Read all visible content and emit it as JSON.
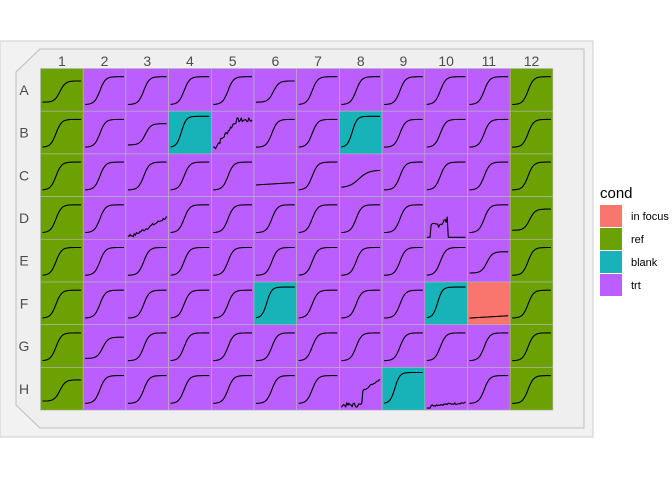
{
  "chart_data": {
    "type": "plate-map",
    "columns": [
      "1",
      "2",
      "3",
      "4",
      "5",
      "6",
      "7",
      "8",
      "9",
      "10",
      "11",
      "12"
    ],
    "rows": [
      "A",
      "B",
      "C",
      "D",
      "E",
      "F",
      "G",
      "H"
    ],
    "legend": {
      "title": "cond",
      "entries": [
        {
          "key": "in_focus",
          "label": "in focus",
          "color": "#F8766D"
        },
        {
          "key": "ref",
          "label": "ref",
          "color": "#6BA102"
        },
        {
          "key": "blank",
          "label": "blank",
          "color": "#17B3B8"
        },
        {
          "key": "trt",
          "label": "trt",
          "color": "#BB5EFF"
        }
      ]
    },
    "default_condition": "trt",
    "wells": {
      "A1": "ref",
      "B1": "ref",
      "C1": "ref",
      "D1": "ref",
      "E1": "ref",
      "F1": "ref",
      "G1": "ref",
      "H1": "ref",
      "A12": "ref",
      "B12": "ref",
      "C12": "ref",
      "D12": "ref",
      "E12": "ref",
      "F12": "ref",
      "G12": "ref",
      "H12": "ref",
      "B4": "blank",
      "B8": "blank",
      "F6": "blank",
      "F10": "blank",
      "H9": "blank",
      "F11": "in_focus"
    },
    "curve_shapes": {
      "A1": "sig_late",
      "A2": "sig",
      "A3": "sig",
      "A4": "sig",
      "A5": "sig",
      "A6": "sig_late",
      "A7": "sig",
      "A8": "sig",
      "A9": "sig",
      "A10": "sig",
      "A11": "sig",
      "A12": "sig",
      "B1": "sig",
      "B2": "sig",
      "B3": "sig_late",
      "B4": "sig_early",
      "B5": "noisy_rise",
      "B6": "sig",
      "B7": "sig",
      "B8": "sig_early",
      "B9": "sig",
      "B10": "sig",
      "B11": "sig",
      "B12": "sig",
      "C1": "sig",
      "C2": "sig",
      "C3": "sig",
      "C4": "sig",
      "C5": "sig",
      "C6": "flat",
      "C7": "sig",
      "C8": "slow",
      "C9": "sig",
      "C10": "sig",
      "C11": "sig",
      "C12": "sig",
      "D1": "sig",
      "D2": "sig",
      "D3": "noisy_linear",
      "D4": "sig",
      "D5": "sig",
      "D6": "sig",
      "D7": "sig",
      "D8": "sig",
      "D9": "sig",
      "D10": "noisy_spike",
      "D11": "sig",
      "D12": "sig_late",
      "E1": "sig",
      "E2": "sig",
      "E3": "sig",
      "E4": "sig",
      "E5": "sig",
      "E6": "sig",
      "E7": "sig",
      "E8": "sig",
      "E9": "sig",
      "E10": "sig",
      "E11": "sig_late",
      "E12": "sig",
      "F1": "sig",
      "F2": "sig",
      "F3": "sig",
      "F4": "sig",
      "F5": "sig",
      "F6": "sig_early",
      "F7": "sig",
      "F8": "sig",
      "F9": "sig",
      "F10": "sig_early",
      "F11": "flat_low",
      "F12": "sig",
      "G1": "sig",
      "G2": "sig_late",
      "G3": "sig",
      "G4": "sig",
      "G5": "sig",
      "G6": "sig",
      "G7": "sig",
      "G8": "sig",
      "G9": "sig",
      "G10": "sig",
      "G11": "sig",
      "G12": "sig",
      "H1": "sig_late",
      "H2": "sig",
      "H3": "sig",
      "H4": "sig",
      "H5": "sig",
      "H6": "sig",
      "H7": "sig",
      "H8": "noisy_jump",
      "H9": "sig_early",
      "H10": "noisy_flat_low",
      "H11": "sig",
      "H12": "sig"
    },
    "title": "",
    "xlabel": "",
    "ylabel": ""
  }
}
